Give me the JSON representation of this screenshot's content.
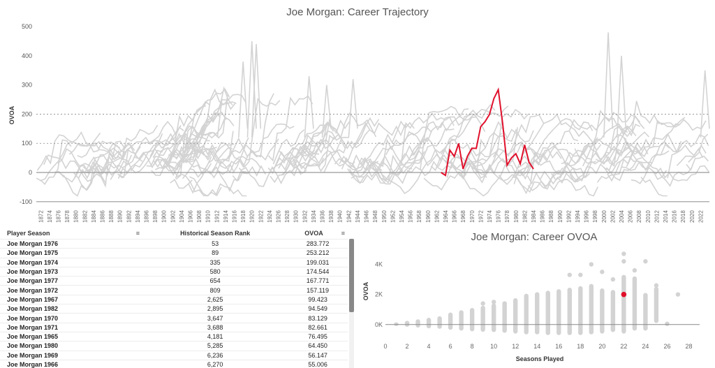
{
  "main_chart": {
    "title": "Joe Morgan: Career Trajectory",
    "ylabel": "OVOA"
  },
  "scatter_chart": {
    "title": "Joe Morgan: Career OVOA",
    "ylabel": "OVOA",
    "xlabel": "Seasons Played"
  },
  "table": {
    "headers": [
      "Player Season",
      "Historical Season Rank",
      "OVOA"
    ],
    "rows": [
      [
        "Joe Morgan 1976",
        "53",
        "283.772"
      ],
      [
        "Joe Morgan 1975",
        "89",
        "253.212"
      ],
      [
        "Joe Morgan 1974",
        "335",
        "199.031"
      ],
      [
        "Joe Morgan 1973",
        "580",
        "174.544"
      ],
      [
        "Joe Morgan 1977",
        "654",
        "167.771"
      ],
      [
        "Joe Morgan 1972",
        "809",
        "157.119"
      ],
      [
        "Joe Morgan 1967",
        "2,625",
        "99.423"
      ],
      [
        "Joe Morgan 1982",
        "2,895",
        "94.549"
      ],
      [
        "Joe Morgan 1970",
        "3,647",
        "83.129"
      ],
      [
        "Joe Morgan 1971",
        "3,688",
        "82.661"
      ],
      [
        "Joe Morgan 1965",
        "4,181",
        "76.495"
      ],
      [
        "Joe Morgan 1980",
        "5,285",
        "64.450"
      ],
      [
        "Joe Morgan 1969",
        "6,236",
        "56.147"
      ],
      [
        "Joe Morgan 1966",
        "6,270",
        "55.006"
      ]
    ]
  },
  "colors": {
    "highlight": "#e0102b",
    "background_lines": "#d3d3d3",
    "scatter_points": "#d3d3d3"
  },
  "chart_data": [
    {
      "type": "line",
      "title": "Joe Morgan: Career Trajectory",
      "ylabel": "OVOA",
      "xlim": [
        1871,
        2024
      ],
      "ylim": [
        -110,
        505
      ],
      "yticks": [
        -100,
        0,
        100,
        200,
        300,
        400,
        500
      ],
      "xticks": [
        1872,
        1874,
        1876,
        1878,
        1880,
        1882,
        1884,
        1886,
        1888,
        1890,
        1892,
        1894,
        1896,
        1898,
        1900,
        1902,
        1904,
        1906,
        1908,
        1910,
        1912,
        1914,
        1916,
        1918,
        1920,
        1922,
        1924,
        1926,
        1928,
        1930,
        1932,
        1934,
        1936,
        1938,
        1940,
        1942,
        1944,
        1946,
        1948,
        1950,
        1952,
        1954,
        1956,
        1958,
        1960,
        1962,
        1964,
        1966,
        1968,
        1970,
        1972,
        1974,
        1976,
        1978,
        1980,
        1982,
        1984,
        1986,
        1988,
        1990,
        1992,
        1994,
        1996,
        1998,
        2000,
        2002,
        2004,
        2006,
        2008,
        2010,
        2012,
        2014,
        2016,
        2018,
        2020,
        2022
      ],
      "reference_lines": [
        -100,
        0,
        100,
        200
      ],
      "highlight_series": {
        "name": "Joe Morgan",
        "x": [
          1963,
          1964,
          1965,
          1966,
          1967,
          1968,
          1969,
          1970,
          1971,
          1972,
          1973,
          1974,
          1975,
          1976,
          1977,
          1978,
          1979,
          1980,
          1981,
          1982,
          1983,
          1984
        ],
        "y": [
          0,
          -10,
          76.495,
          55.006,
          99.423,
          12,
          56.147,
          83.129,
          82.661,
          157.119,
          174.544,
          199.031,
          253.212,
          283.772,
          167.771,
          25,
          50,
          64.45,
          30,
          94.549,
          35,
          12
        ]
      }
    },
    {
      "type": "scatter",
      "title": "Joe Morgan: Career OVOA",
      "xlabel": "Seasons Played",
      "ylabel": "OVOA",
      "xlim": [
        0,
        29
      ],
      "ylim": [
        -800,
        5000
      ],
      "xticks": [
        0,
        2,
        4,
        6,
        8,
        10,
        12,
        14,
        16,
        18,
        20,
        22,
        24,
        26,
        28
      ],
      "yticks": [
        0,
        2000,
        4000
      ],
      "ytick_labels": [
        "0K",
        "2K",
        "4K"
      ],
      "highlight_point": {
        "x": 22,
        "y": 2000
      },
      "distribution": [
        {
          "x": 1,
          "min": -100,
          "max": 150
        },
        {
          "x": 2,
          "min": -150,
          "max": 250
        },
        {
          "x": 3,
          "min": -200,
          "max": 350
        },
        {
          "x": 4,
          "min": -250,
          "max": 450
        },
        {
          "x": 5,
          "min": -280,
          "max": 550
        },
        {
          "x": 6,
          "min": -350,
          "max": 800
        },
        {
          "x": 7,
          "min": -400,
          "max": 950
        },
        {
          "x": 8,
          "min": -450,
          "max": 1100
        },
        {
          "x": 9,
          "min": -480,
          "max": 1250
        },
        {
          "x": 10,
          "min": -500,
          "max": 1400
        },
        {
          "x": 11,
          "min": -550,
          "max": 1550
        },
        {
          "x": 12,
          "min": -600,
          "max": 1750
        },
        {
          "x": 13,
          "min": -650,
          "max": 2050
        },
        {
          "x": 14,
          "min": -650,
          "max": 2150
        },
        {
          "x": 15,
          "min": -700,
          "max": 2250
        },
        {
          "x": 16,
          "min": -700,
          "max": 2350
        },
        {
          "x": 17,
          "min": -700,
          "max": 2450
        },
        {
          "x": 18,
          "min": -700,
          "max": 2550
        },
        {
          "x": 19,
          "min": -650,
          "max": 2700
        },
        {
          "x": 20,
          "min": -600,
          "max": 2400
        },
        {
          "x": 21,
          "min": -500,
          "max": 2300
        },
        {
          "x": 22,
          "min": -600,
          "max": 3300
        },
        {
          "x": 23,
          "min": -400,
          "max": 3200
        },
        {
          "x": 24,
          "min": -400,
          "max": 2100
        },
        {
          "x": 25,
          "min": 100,
          "max": 2500
        }
      ],
      "outliers": [
        {
          "x": 17,
          "y": 3300
        },
        {
          "x": 19,
          "y": 4000
        },
        {
          "x": 20,
          "y": 3500
        },
        {
          "x": 21,
          "y": 3000
        },
        {
          "x": 22,
          "y": 4700
        },
        {
          "x": 22,
          "y": 4200
        },
        {
          "x": 23,
          "y": 3600
        },
        {
          "x": 24,
          "y": 4200
        },
        {
          "x": 25,
          "y": 2600
        },
        {
          "x": 26,
          "y": 50
        },
        {
          "x": 27,
          "y": 2000
        },
        {
          "x": 10,
          "y": 1500
        },
        {
          "x": 9,
          "y": 1400
        },
        {
          "x": 18,
          "y": 3300
        }
      ]
    }
  ]
}
